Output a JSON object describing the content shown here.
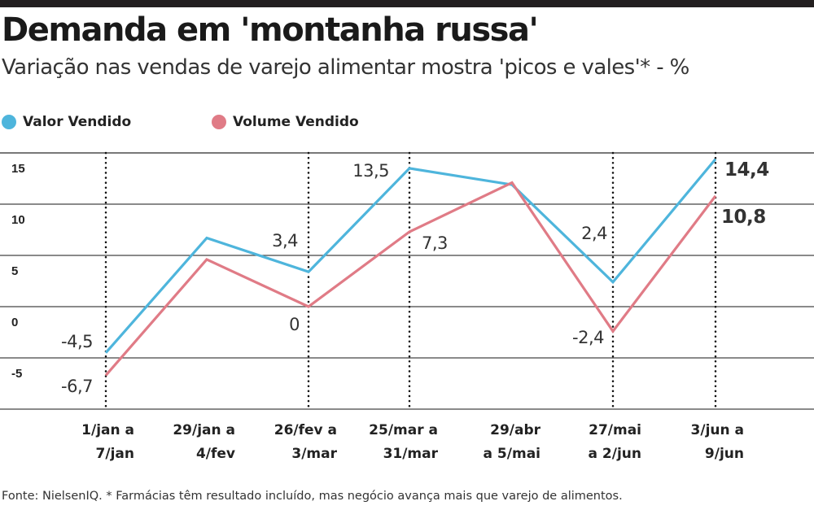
{
  "title": "Demanda em 'montanha russa'",
  "subtitle": "Variação nas vendas de varejo alimentar mostra 'picos e vales'* - %",
  "source": "Fonte: NielsenIQ. * Farmácias têm resultado incluído, mas negócio avança mais que varejo de alimentos.",
  "colors": {
    "valor": "#4eb5dc",
    "volume": "#e07b86",
    "grid": "#444444",
    "text": "#222222"
  },
  "legend": [
    {
      "label": "Valor Vendido",
      "color": "#4eb5dc"
    },
    {
      "label": "Volume Vendido",
      "color": "#e07b86"
    }
  ],
  "chart_data": {
    "type": "line",
    "x": [
      [
        "1/jan a",
        "7/jan"
      ],
      [
        "29/jan a",
        "4/fev"
      ],
      [
        "26/fev a",
        "3/mar"
      ],
      [
        "25/mar a",
        "31/mar"
      ],
      [
        "29/abr",
        "a 5/mai"
      ],
      [
        "27/mai",
        "a 2/jun"
      ],
      [
        "3/jun a",
        "9/jun"
      ]
    ],
    "series": [
      {
        "name": "Valor Vendido",
        "values": [
          -4.5,
          6.7,
          3.4,
          13.5,
          11.9,
          2.4,
          14.4
        ],
        "labels": [
          "-4,5",
          "",
          "3,4",
          "13,5",
          "",
          "2,4",
          "14,4"
        ]
      },
      {
        "name": "Volume Vendido",
        "values": [
          -6.7,
          4.6,
          0,
          7.3,
          12.1,
          -2.4,
          10.8
        ],
        "labels": [
          "-6,7",
          "",
          "0",
          "7,3",
          "",
          "-2,4",
          "10,8"
        ]
      }
    ],
    "yticks": [
      "-5",
      "0",
      "5",
      "10",
      "15"
    ],
    "ylim": [
      -10,
      15
    ],
    "grid": true,
    "dotted_x_guides": [
      0,
      2,
      3,
      5,
      6
    ],
    "legend_position": "top-left"
  }
}
